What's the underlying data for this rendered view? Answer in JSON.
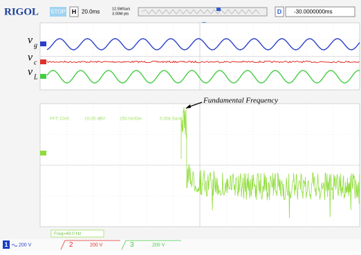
{
  "header": {
    "brand": "RIGOL",
    "status": "STOP",
    "timebase_label": "H",
    "timebase": "20.0ms",
    "sample_rate": "12.5MSa/s",
    "memory_depth": "3.00M pts",
    "delay_label": "D",
    "delay": "-30.0000000ms"
  },
  "traces": [
    {
      "symbol": "v",
      "subscript": "g"
    },
    {
      "symbol": "v",
      "subscript": "c"
    },
    {
      "symbol": "v",
      "subscript": "L"
    }
  ],
  "annotation": "Fundamental Frequency",
  "fft": {
    "source": "FFT: CH3",
    "scale": "10.00 dBV",
    "span": "250 Hz/Div",
    "rate": "5.00k Sa/s"
  },
  "measurement": "Freq=49.0 Hz",
  "channels": [
    {
      "number": "1",
      "scale": "200 V"
    },
    {
      "number": "2",
      "scale": "200 V"
    },
    {
      "number": "3",
      "scale": "200 V"
    }
  ]
}
